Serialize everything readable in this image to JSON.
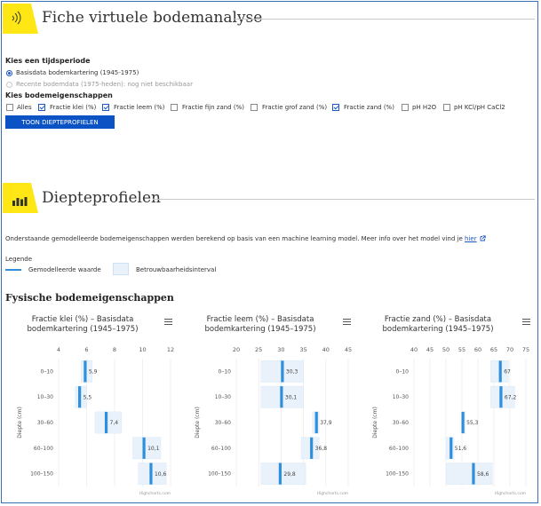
{
  "header": {
    "title": "Fiche virtuele bodemanalyse"
  },
  "period": {
    "label": "Kies een tijdsperiode",
    "options": [
      {
        "label": "Basisdata bodemkartering (1945-1975)",
        "selected": true,
        "enabled": true
      },
      {
        "label": "Recente bodemdata (1975-heden): nog niet beschikbaar",
        "selected": false,
        "enabled": false
      }
    ]
  },
  "properties": {
    "label": "Kies bodemeigenschappen",
    "options": [
      {
        "label": "Alles",
        "checked": false
      },
      {
        "label": "Fractie klei (%)",
        "checked": true
      },
      {
        "label": "Fractie leem (%)",
        "checked": true
      },
      {
        "label": "Fractie fijn zand (%)",
        "checked": false
      },
      {
        "label": "Fractie grof zand (%)",
        "checked": false
      },
      {
        "label": "Fractie zand (%)",
        "checked": true
      },
      {
        "label": "pH H2O",
        "checked": false
      },
      {
        "label": "pH KCl/pH CaCl2",
        "checked": false
      }
    ],
    "button_label": "TOON DIEPTEPROFIELEN"
  },
  "depth_section": {
    "title": "Diepteprofielen",
    "description": "Onderstaande gemodelleerde bodemeigenschappen werden berekend op basis van een machine learning model. Meer info over het model vind je",
    "link_label": "hier",
    "legend": {
      "label": "Legende",
      "modeled": "Gemodelleerde waarde",
      "interval": "Betrouwbaarheidsinterval"
    },
    "physical_title": "Fysische bodemeigenschappen"
  },
  "colors": {
    "accent_yellow": "#ffe615",
    "primary_blue": "#0b52c5",
    "value_bar": "#2f8fdd",
    "interval_fill": "#e9f2fb"
  },
  "chart_data": [
    {
      "type": "bar",
      "title": "Fractie klei (%) – Basisdata bodemkartering (1945–1975)",
      "ylabel": "Diepte (cm)",
      "credits": "Highcharts.com",
      "categories": [
        "0–10",
        "10–30",
        "30–60",
        "60–100",
        "100–150"
      ],
      "xlim": [
        4,
        12
      ],
      "ticks": [
        4,
        6,
        8,
        10,
        12
      ],
      "values": [
        5.9,
        5.5,
        7.4,
        10.1,
        10.6
      ],
      "value_labels": [
        "5,9",
        "5,5",
        "7,4",
        "10,1",
        "10,6"
      ],
      "intervals": [
        [
          5.6,
          6.4
        ],
        [
          5.2,
          6.0
        ],
        [
          6.6,
          8.5
        ],
        [
          9.3,
          11.3
        ],
        [
          9.7,
          11.7
        ]
      ]
    },
    {
      "type": "bar",
      "title": "Fractie leem (%) – Basisdata bodemkartering (1945–1975)",
      "ylabel": "Diepte (cm)",
      "credits": "Highcharts.com",
      "categories": [
        "0–10",
        "10–30",
        "30–60",
        "60–100",
        "100–150"
      ],
      "xlim": [
        20,
        45
      ],
      "ticks": [
        20,
        25,
        30,
        35,
        40,
        45
      ],
      "values": [
        30.3,
        30.1,
        37.9,
        36.8,
        29.8
      ],
      "value_labels": [
        "30,3",
        "30,1",
        "37,9",
        "36,8",
        "29,8"
      ],
      "intervals": [
        [
          25.5,
          35.0
        ],
        [
          25.5,
          35.0
        ],
        [
          37.0,
          38.5
        ],
        [
          34.5,
          38.5
        ],
        [
          25.5,
          35.5
        ]
      ]
    },
    {
      "type": "bar",
      "title": "Fractie zand (%) – Basisdata bodemkartering (1945–1975)",
      "ylabel": "Diepte (cm)",
      "credits": "Highcharts.com",
      "categories": [
        "0–10",
        "10–30",
        "30–60",
        "60–100",
        "100–150"
      ],
      "xlim": [
        40,
        75
      ],
      "ticks": [
        40,
        45,
        50,
        55,
        60,
        65,
        70,
        75
      ],
      "values": [
        67,
        67.2,
        55.3,
        51.6,
        58.6
      ],
      "value_labels": [
        "67",
        "67,2",
        "55,3",
        "51,6",
        "58,6"
      ],
      "intervals": [
        [
          64.0,
          69.5
        ],
        [
          64.0,
          71.5
        ],
        [
          55.0,
          56.0
        ],
        [
          50.0,
          52.5
        ],
        [
          50.0,
          64.5
        ]
      ]
    }
  ]
}
